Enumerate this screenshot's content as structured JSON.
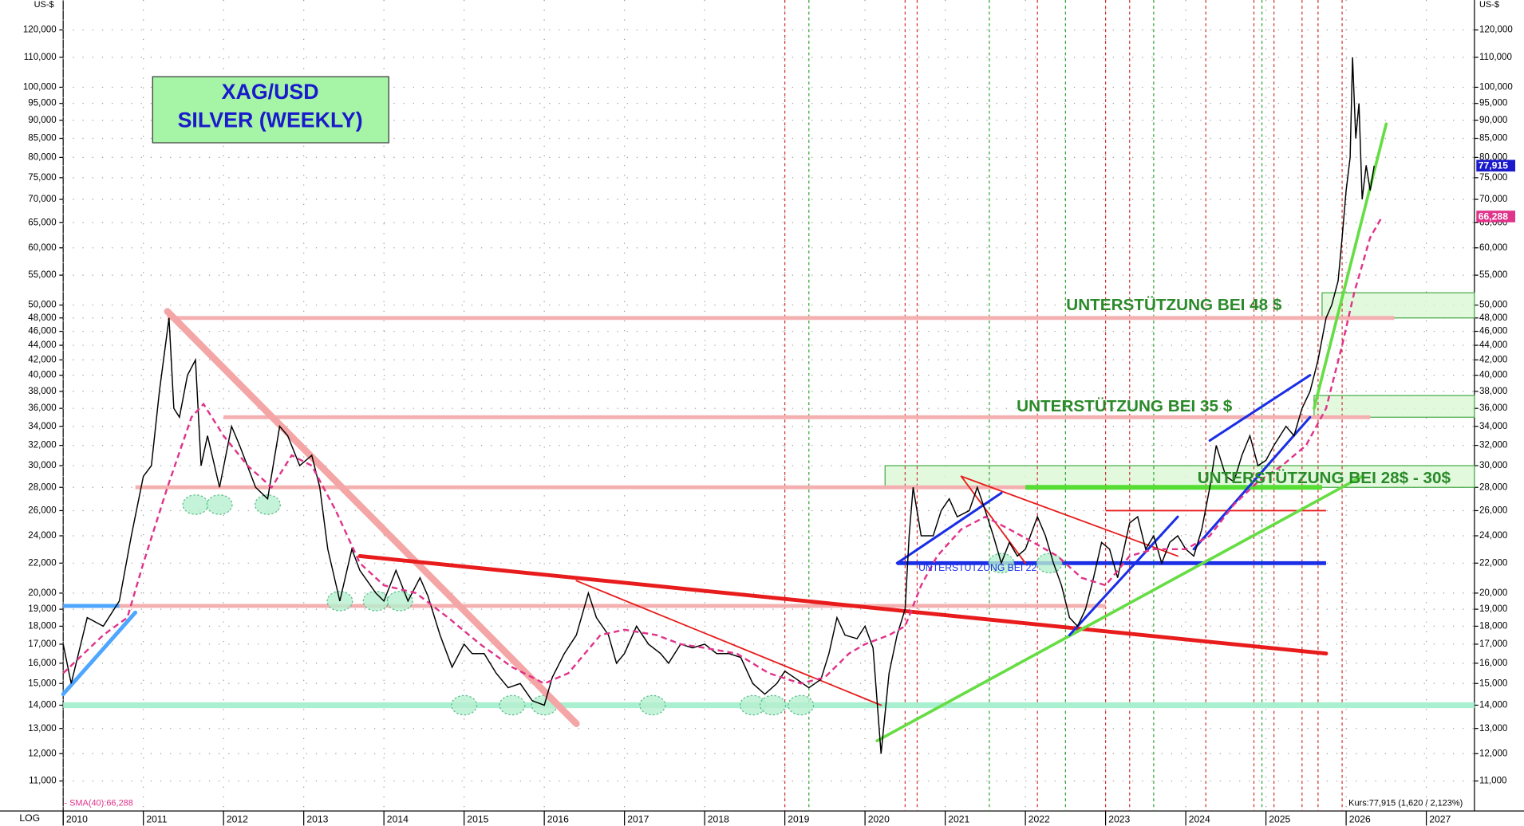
{
  "chart_data": {
    "type": "line",
    "title": "XAG/USD",
    "subtitle": "SILVER (WEEKLY)",
    "y_unit": "US-$",
    "scale_label": "LOG",
    "log_scale": true,
    "grid": true,
    "xlim": [
      2010,
      2027.6
    ],
    "xticks": [
      2010,
      2011,
      2012,
      2013,
      2014,
      2015,
      2016,
      2017,
      2018,
      2019,
      2020,
      2021,
      2022,
      2023,
      2024,
      2025,
      2026,
      2027
    ],
    "ylim": [
      10,
      132
    ],
    "yticks": [
      {
        "value": 11,
        "label": "11,000"
      },
      {
        "value": 12,
        "label": "12,000"
      },
      {
        "value": 13,
        "label": "13,000"
      },
      {
        "value": 14,
        "label": "14,000"
      },
      {
        "value": 15,
        "label": "15,000"
      },
      {
        "value": 16,
        "label": "16,000"
      },
      {
        "value": 17,
        "label": "17,000"
      },
      {
        "value": 18,
        "label": "18,000"
      },
      {
        "value": 19,
        "label": "19,000"
      },
      {
        "value": 20,
        "label": "20,000"
      },
      {
        "value": 22,
        "label": "22,000"
      },
      {
        "value": 24,
        "label": "24,000"
      },
      {
        "value": 26,
        "label": "26,000"
      },
      {
        "value": 28,
        "label": "28,000"
      },
      {
        "value": 30,
        "label": "30,000"
      },
      {
        "value": 32,
        "label": "32,000"
      },
      {
        "value": 34,
        "label": "34,000"
      },
      {
        "value": 36,
        "label": "36,000"
      },
      {
        "value": 38,
        "label": "38,000"
      },
      {
        "value": 40,
        "label": "40,000"
      },
      {
        "value": 42,
        "label": "42,000"
      },
      {
        "value": 44,
        "label": "44,000"
      },
      {
        "value": 46,
        "label": "46,000"
      },
      {
        "value": 48,
        "label": "48,000"
      },
      {
        "value": 50,
        "label": "50,000"
      },
      {
        "value": 55,
        "label": "55,000"
      },
      {
        "value": 60,
        "label": "60,000"
      },
      {
        "value": 65,
        "label": "65,000"
      },
      {
        "value": 70,
        "label": "70,000"
      },
      {
        "value": 75,
        "label": "75,000"
      },
      {
        "value": 80,
        "label": "80,000"
      },
      {
        "value": 85,
        "label": "85,000"
      },
      {
        "value": 90,
        "label": "90,000"
      },
      {
        "value": 95,
        "label": "95,000"
      },
      {
        "value": 100,
        "label": "100,000"
      },
      {
        "value": 110,
        "label": "110,000"
      },
      {
        "value": 120,
        "label": "120,000"
      }
    ],
    "series": [
      {
        "name": "Kurs:77,915 (1,620 / 2,123%)",
        "color": "#000000",
        "dash": false,
        "x": [
          2010.0,
          2010.1,
          2010.3,
          2010.5,
          2010.7,
          2010.85,
          2011.0,
          2011.1,
          2011.2,
          2011.32,
          2011.38,
          2011.45,
          2011.55,
          2011.65,
          2011.72,
          2011.8,
          2011.95,
          2012.1,
          2012.2,
          2012.4,
          2012.55,
          2012.7,
          2012.8,
          2012.95,
          2013.1,
          2013.2,
          2013.3,
          2013.45,
          2013.6,
          2013.7,
          2013.9,
          2014.0,
          2014.15,
          2014.3,
          2014.45,
          2014.55,
          2014.7,
          2014.85,
          2015.0,
          2015.1,
          2015.25,
          2015.4,
          2015.55,
          2015.7,
          2015.85,
          2016.0,
          2016.1,
          2016.25,
          2016.4,
          2016.55,
          2016.65,
          2016.8,
          2016.9,
          2017.0,
          2017.15,
          2017.3,
          2017.45,
          2017.55,
          2017.7,
          2017.85,
          2018.0,
          2018.15,
          2018.3,
          2018.45,
          2018.6,
          2018.75,
          2018.9,
          2019.0,
          2019.15,
          2019.3,
          2019.45,
          2019.55,
          2019.65,
          2019.75,
          2019.9,
          2020.0,
          2020.1,
          2020.2,
          2020.3,
          2020.4,
          2020.5,
          2020.55,
          2020.6,
          2020.7,
          2020.85,
          2020.95,
          2021.05,
          2021.15,
          2021.3,
          2021.4,
          2021.5,
          2021.6,
          2021.7,
          2021.8,
          2021.9,
          2022.0,
          2022.15,
          2022.25,
          2022.35,
          2022.45,
          2022.55,
          2022.65,
          2022.75,
          2022.85,
          2022.95,
          2023.05,
          2023.15,
          2023.3,
          2023.4,
          2023.5,
          2023.6,
          2023.7,
          2023.8,
          2023.9,
          2024.0,
          2024.1,
          2024.2,
          2024.3,
          2024.38,
          2024.5,
          2024.6,
          2024.7,
          2024.8,
          2024.9,
          2025.0,
          2025.1,
          2025.25,
          2025.35,
          2025.45,
          2025.55,
          2025.65,
          2025.75,
          2025.82,
          2025.9,
          2025.95,
          2026.0,
          2026.05,
          2026.08,
          2026.12,
          2026.16,
          2026.2,
          2026.25,
          2026.3,
          2026.35
        ],
        "values": [
          17,
          15,
          18.5,
          18,
          19.5,
          24,
          29,
          30,
          38,
          48,
          36,
          35,
          40,
          42,
          30,
          33,
          28,
          34,
          32,
          28,
          27,
          34,
          33,
          30,
          31,
          28,
          23,
          19.5,
          23,
          21.5,
          20,
          19.5,
          21.5,
          19.5,
          21,
          19.8,
          17.5,
          15.8,
          17,
          16.5,
          16.5,
          15.5,
          14.8,
          15,
          14.2,
          14,
          15.3,
          16.5,
          17.5,
          20,
          18.5,
          17.5,
          16,
          16.5,
          18,
          17,
          16.5,
          16,
          17,
          16.8,
          17,
          16.5,
          16.5,
          16.3,
          15,
          14.5,
          15,
          15.6,
          15.2,
          14.8,
          15.2,
          16.5,
          18.5,
          17.5,
          17.3,
          18,
          16.8,
          12,
          15.5,
          17.5,
          19,
          24,
          28,
          24,
          24,
          26,
          27,
          25.5,
          26,
          28,
          26,
          24,
          22,
          23.5,
          22.5,
          23,
          25.5,
          24,
          22,
          20.5,
          18.5,
          18,
          19,
          21,
          23.5,
          23,
          21,
          25,
          25.5,
          23,
          24,
          22,
          23.5,
          24,
          23,
          22.5,
          24.5,
          28,
          32,
          29,
          28.5,
          31,
          33,
          30,
          30.5,
          32,
          34,
          33,
          36,
          38,
          42,
          48,
          50,
          54,
          62,
          72,
          80,
          110,
          85,
          95,
          70,
          78,
          72,
          77.915
        ]
      },
      {
        "name": "- SMA(40):66,288",
        "color": "#e0338a",
        "dash": true,
        "x": [
          2010.0,
          2010.5,
          2010.8,
          2011.0,
          2011.3,
          2011.6,
          2011.75,
          2012.0,
          2012.3,
          2012.6,
          2012.85,
          2013.1,
          2013.4,
          2013.7,
          2014.0,
          2014.4,
          2014.8,
          2015.2,
          2015.6,
          2016.0,
          2016.3,
          2016.7,
          2017.0,
          2017.4,
          2017.7,
          2018.0,
          2018.4,
          2018.8,
          2019.2,
          2019.5,
          2019.8,
          2020.0,
          2020.3,
          2020.5,
          2020.7,
          2020.9,
          2021.2,
          2021.5,
          2021.8,
          2022.1,
          2022.4,
          2022.7,
          2023.0,
          2023.3,
          2023.6,
          2024.0,
          2024.3,
          2024.6,
          2024.9,
          2025.2,
          2025.5,
          2025.75,
          2025.95,
          2026.1,
          2026.3,
          2026.45
        ],
        "values": [
          15.5,
          17.5,
          18.5,
          22,
          28,
          35,
          36.5,
          33,
          30,
          28,
          31,
          30,
          26,
          22,
          20.5,
          20,
          18.5,
          17,
          15.8,
          15,
          15.5,
          17.5,
          17.8,
          17.5,
          17,
          16.8,
          16.5,
          15.5,
          15,
          15.3,
          16.5,
          17,
          17.5,
          18,
          20.5,
          22.5,
          24.5,
          25.5,
          24.5,
          23.5,
          22.5,
          21,
          20.5,
          22.5,
          23,
          23,
          24,
          26.5,
          28.5,
          30,
          32,
          36,
          44,
          52,
          62,
          66.288
        ]
      }
    ],
    "last_values": [
      {
        "value": 77.915,
        "label": "77,915",
        "color": "#1a1acc"
      },
      {
        "value": 66.288,
        "label": "66,288",
        "color": "#e0338a"
      }
    ],
    "zones": [
      {
        "from": 2020.25,
        "to": 2027.6,
        "low": 28,
        "high": 30
      },
      {
        "from": 2025.6,
        "to": 2027.6,
        "low": 35,
        "high": 37.5
      },
      {
        "from": 2025.7,
        "to": 2027.6,
        "low": 48,
        "high": 52
      }
    ],
    "levels": [
      {
        "value": 14,
        "from": 2010,
        "to": 2027.6,
        "color": "#a8f0d0",
        "width": 6
      },
      {
        "value": 19.2,
        "from": 2010,
        "to": 2023.0,
        "color": "#f4b0b0",
        "width": 4
      },
      {
        "value": 19.2,
        "from": 2010,
        "to": 2010.7,
        "color": "#4da6ff",
        "width": 4
      },
      {
        "value": 28,
        "from": 2010.9,
        "to": 2025.7,
        "color": "#f4b0b0",
        "width": 4
      },
      {
        "value": 35,
        "from": 2012.0,
        "to": 2026.3,
        "color": "#f4b0b0",
        "width": 4
      },
      {
        "value": 48,
        "from": 2011.3,
        "to": 2026.6,
        "color": "#f4b0b0",
        "width": 4
      },
      {
        "value": 28,
        "from": 2022.0,
        "to": 2025.7,
        "color": "#55dd33",
        "width": 5
      },
      {
        "value": 26,
        "from": 2023.0,
        "to": 2025.75,
        "color": "#e81c1c",
        "width": 1.5
      },
      {
        "value": 22,
        "from": 2020.4,
        "to": 2025.75,
        "color": "#1a2ee6",
        "width": 4
      }
    ],
    "trendlines": [
      {
        "color": "#f4a5a5",
        "width": 7,
        "points": [
          [
            2011.3,
            49
          ],
          [
            2016.4,
            13.2
          ]
        ]
      },
      {
        "color": "#e81c1c",
        "width": 4,
        "points": [
          [
            2013.7,
            22.5
          ],
          [
            2025.75,
            16.5
          ]
        ]
      },
      {
        "color": "#e81c1c",
        "width": 1.5,
        "points": [
          [
            2016.4,
            20.8
          ],
          [
            2020.2,
            14
          ]
        ]
      },
      {
        "color": "#e81c1c",
        "width": 1.5,
        "points": [
          [
            2021.2,
            29
          ],
          [
            2022.0,
            22
          ]
        ]
      },
      {
        "color": "#e81c1c",
        "width": 1.5,
        "points": [
          [
            2021.2,
            29
          ],
          [
            2023.9,
            22.5
          ]
        ]
      },
      {
        "color": "#66dd44",
        "width": 3,
        "points": [
          [
            2020.15,
            12.5
          ],
          [
            2026.2,
            29
          ]
        ]
      },
      {
        "color": "#66dd44",
        "width": 3,
        "points": [
          [
            2025.6,
            36
          ],
          [
            2026.5,
            89
          ]
        ]
      },
      {
        "color": "#4da6ff",
        "width": 4,
        "points": [
          [
            2010.0,
            14.5
          ],
          [
            2010.9,
            18.8
          ]
        ]
      },
      {
        "color": "#1a2ee6",
        "width": 2.5,
        "points": [
          [
            2020.4,
            22
          ],
          [
            2021.7,
            27.5
          ]
        ]
      },
      {
        "color": "#1a2ee6",
        "width": 2.5,
        "points": [
          [
            2022.55,
            17.5
          ],
          [
            2023.9,
            25.5
          ]
        ]
      },
      {
        "color": "#1a2ee6",
        "width": 2.5,
        "points": [
          [
            2024.3,
            32.5
          ],
          [
            2025.55,
            40
          ]
        ]
      },
      {
        "color": "#1a2ee6",
        "width": 2.5,
        "points": [
          [
            2024.1,
            23
          ],
          [
            2025.55,
            35
          ]
        ]
      }
    ],
    "event_lines": [
      {
        "x": 2019.0,
        "color": "#d03030"
      },
      {
        "x": 2019.3,
        "color": "#30a030"
      },
      {
        "x": 2020.5,
        "color": "#d03030"
      },
      {
        "x": 2020.65,
        "color": "#d03030"
      },
      {
        "x": 2021.55,
        "color": "#30a030"
      },
      {
        "x": 2022.15,
        "color": "#d03030"
      },
      {
        "x": 2022.5,
        "color": "#30a030"
      },
      {
        "x": 2023.0,
        "color": "#d03030"
      },
      {
        "x": 2023.3,
        "color": "#d03030"
      },
      {
        "x": 2023.6,
        "color": "#30a030"
      },
      {
        "x": 2024.25,
        "color": "#d03030"
      },
      {
        "x": 2024.85,
        "color": "#d03030"
      },
      {
        "x": 2024.95,
        "color": "#30a030"
      },
      {
        "x": 2025.1,
        "color": "#d03030"
      },
      {
        "x": 2025.45,
        "color": "#d03030"
      },
      {
        "x": 2025.65,
        "color": "#d03030"
      },
      {
        "x": 2025.95,
        "color": "#d03030"
      }
    ],
    "low_markers": [
      [
        2011.65,
        26.5
      ],
      [
        2011.95,
        26.5
      ],
      [
        2012.55,
        26.5
      ],
      [
        2013.45,
        19.5
      ],
      [
        2013.9,
        19.5
      ],
      [
        2014.2,
        19.5
      ],
      [
        2015.0,
        14
      ],
      [
        2015.6,
        14
      ],
      [
        2016.0,
        14
      ],
      [
        2017.35,
        14
      ],
      [
        2018.6,
        14
      ],
      [
        2018.85,
        14
      ],
      [
        2019.2,
        14
      ],
      [
        2021.7,
        22
      ],
      [
        2022.3,
        22
      ]
    ],
    "annotations": [
      "UNTERSTÜTZUNG BEI 48 $",
      "UNTERSTÜTZUNG BEI 35 $",
      "UNTERSTÜTZUNG BEI 28$ - 30$",
      "UNTERSTÜTZUNG BEI 22"
    ]
  }
}
